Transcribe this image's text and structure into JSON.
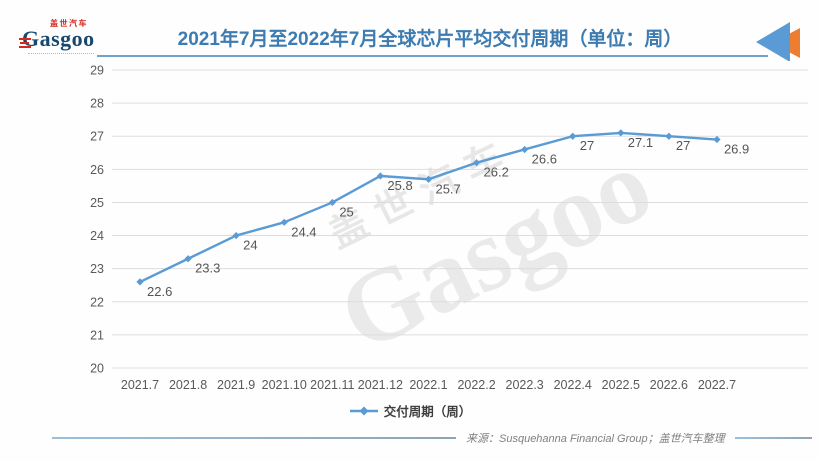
{
  "header": {
    "logo": {
      "brand_cn": "盖世汽车",
      "brand_en": "Gasgoo"
    },
    "title": "2021年7月至2022年7月全球芯片平均交付周期（单位：周）"
  },
  "chart_data": {
    "type": "line",
    "title": "2021年7月至2022年7月全球芯片平均交付周期（单位：周）",
    "categories": [
      "2021.7",
      "2021.8",
      "2021.9",
      "2021.10",
      "2021.11",
      "2021.12",
      "2022.1",
      "2022.2",
      "2022.3",
      "2022.4",
      "2022.5",
      "2022.6",
      "2022.7"
    ],
    "series": [
      {
        "name": "交付周期（周）",
        "values": [
          22.6,
          23.3,
          24,
          24.4,
          25,
          25.8,
          25.7,
          26.2,
          26.6,
          27,
          27.1,
          27,
          26.9
        ]
      }
    ],
    "ylim": [
      20,
      29
    ],
    "ytick_step": 1,
    "grid": true,
    "legend_position": "bottom",
    "line_color": "#5B9BD5",
    "grid_color": "#DDDDDD",
    "axis_text_color": "#595959",
    "label_color": "#555555"
  },
  "legend": {
    "label": "交付周期（周）"
  },
  "watermark": {
    "text_cn": "盖世汽车",
    "text_en": "Gasgoo"
  },
  "footer": {
    "source": "来源：Susquehanna Financial Group；盖世汽车整理"
  }
}
